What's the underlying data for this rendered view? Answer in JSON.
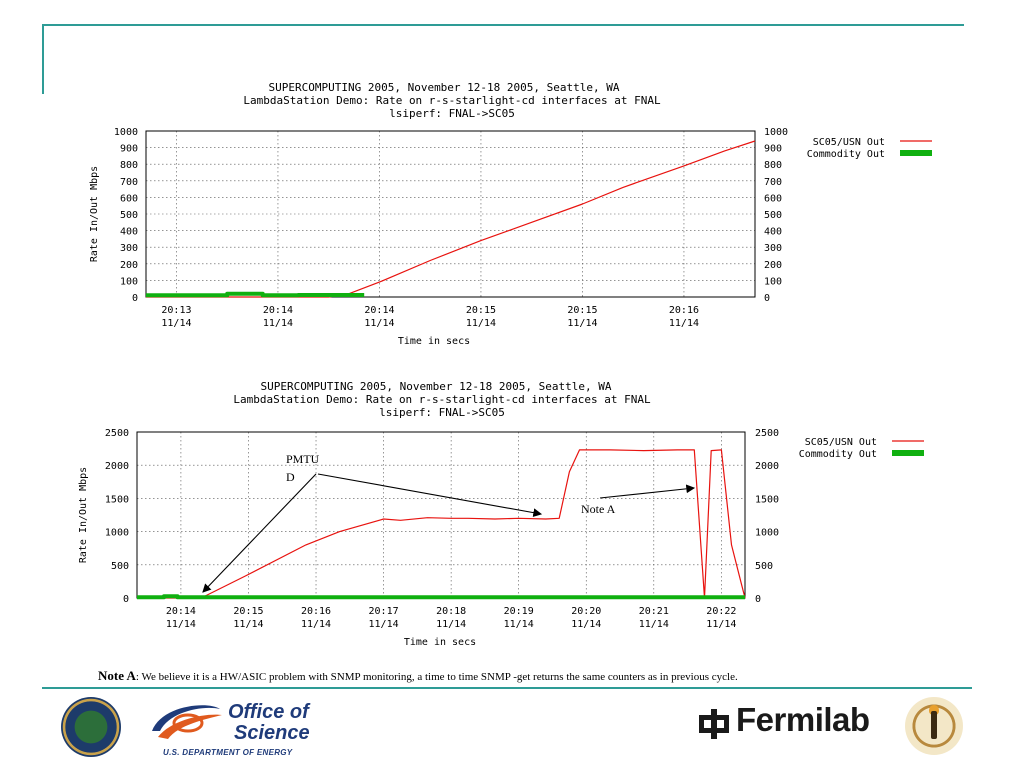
{
  "note": {
    "label": "Note A",
    "text": ": We believe it is a HW/ASIC problem with SNMP monitoring, a time to time SNMP -get returns the same counters as in previous cycle."
  },
  "logos": {
    "office_of_science_line1": "Office of",
    "office_of_science_line2": "Science",
    "office_of_science_sub": "U.S. DEPARTMENT OF ENERGY",
    "fermilab": "Fermilab"
  },
  "colors": {
    "accent_rule": "#2e9c96",
    "series_usn": "#e8130f",
    "series_commodity": "#10b010"
  },
  "chart_data": [
    {
      "type": "line",
      "title": "SUPERCOMPUTING 2005, November 12-18 2005, Seattle, WA",
      "subtitle": "LambdaStation Demo: Rate on r-s-starlight-cd interfaces at FNAL",
      "subtitle2": "lsiperf: FNAL->SC05",
      "xlabel": "Time in secs",
      "ylabel": "Rate In/Out Mbps",
      "ylim": [
        0,
        1000
      ],
      "yticks": [
        "0",
        "100",
        "200",
        "300",
        "400",
        "500",
        "600",
        "700",
        "800",
        "900",
        "1000"
      ],
      "xlim": [
        0,
        6
      ],
      "xticks": [
        {
          "x": 0.3,
          "top": "20:13",
          "bottom": "11/14"
        },
        {
          "x": 1.3,
          "top": "20:14",
          "bottom": "11/14"
        },
        {
          "x": 2.3,
          "top": "20:14",
          "bottom": "11/14"
        },
        {
          "x": 3.3,
          "top": "20:15",
          "bottom": "11/14"
        },
        {
          "x": 4.3,
          "top": "20:15",
          "bottom": "11/14"
        },
        {
          "x": 5.3,
          "top": "20:16",
          "bottom": "11/14"
        }
      ],
      "grid": true,
      "legend": "right",
      "series": [
        {
          "name": "SC05/USN Out",
          "color": "#e8130f",
          "x": [
            0,
            1.5,
            1.8,
            2.0,
            2.3,
            2.8,
            3.3,
            3.8,
            4.3,
            4.7,
            5.3,
            5.7,
            6.0
          ],
          "y": [
            0,
            0,
            0,
            20,
            90,
            220,
            340,
            450,
            560,
            660,
            790,
            880,
            940
          ]
        },
        {
          "name": "Commodity Out",
          "color": "#10b010",
          "x": [
            0,
            0.8,
            0.8,
            1.15,
            1.15,
            1.5,
            1.5,
            2.15
          ],
          "y": [
            10,
            10,
            20,
            20,
            10,
            10,
            12,
            12
          ]
        }
      ]
    },
    {
      "type": "line",
      "title": "SUPERCOMPUTING 2005, November 12-18 2005, Seattle, WA",
      "subtitle": "LambdaStation Demo: Rate on r-s-starlight-cd interfaces at FNAL",
      "subtitle2": "lsiperf: FNAL->SC05",
      "xlabel": "Time in secs",
      "ylabel": "Rate In/Out Mbps",
      "ylim": [
        0,
        2500
      ],
      "yticks": [
        "0",
        "500",
        "1000",
        "1500",
        "2000",
        "2500"
      ],
      "xlim": [
        0,
        9
      ],
      "xticks": [
        {
          "x": 0.65,
          "top": "20:14",
          "bottom": "11/14"
        },
        {
          "x": 1.65,
          "top": "20:15",
          "bottom": "11/14"
        },
        {
          "x": 2.65,
          "top": "20:16",
          "bottom": "11/14"
        },
        {
          "x": 3.65,
          "top": "20:17",
          "bottom": "11/14"
        },
        {
          "x": 4.65,
          "top": "20:18",
          "bottom": "11/14"
        },
        {
          "x": 5.65,
          "top": "20:19",
          "bottom": "11/14"
        },
        {
          "x": 6.65,
          "top": "20:20",
          "bottom": "11/14"
        },
        {
          "x": 7.65,
          "top": "20:21",
          "bottom": "11/14"
        },
        {
          "x": 8.65,
          "top": "20:22",
          "bottom": "11/14"
        }
      ],
      "grid": true,
      "legend": "right",
      "series": [
        {
          "name": "SC05/USN Out",
          "color": "#e8130f",
          "x": [
            0,
            0.95,
            1.6,
            2.5,
            3.0,
            3.65,
            3.9,
            4.3,
            4.65,
            4.9,
            5.3,
            5.65,
            6.05,
            6.25,
            6.4,
            6.55,
            7.0,
            7.5,
            8.0,
            8.25,
            8.4,
            8.5,
            8.65,
            8.8,
            8.95,
            9.0
          ],
          "y": [
            0,
            0,
            330,
            800,
            1000,
            1190,
            1170,
            1210,
            1200,
            1200,
            1190,
            1200,
            1190,
            1200,
            1900,
            2230,
            2230,
            2220,
            2230,
            2230,
            0,
            2220,
            2230,
            800,
            200,
            0
          ]
        },
        {
          "name": "Commodity Out",
          "color": "#10b010",
          "x": [
            0,
            0.4,
            0.4,
            0.6,
            0.6,
            0.9,
            8.85,
            9.0
          ],
          "y": [
            10,
            10,
            25,
            25,
            10,
            10,
            10,
            10
          ]
        }
      ],
      "annotations": [
        {
          "text_line1": "PMTU",
          "text_line2": "D"
        },
        {
          "text_line1": "Note A"
        }
      ]
    }
  ]
}
